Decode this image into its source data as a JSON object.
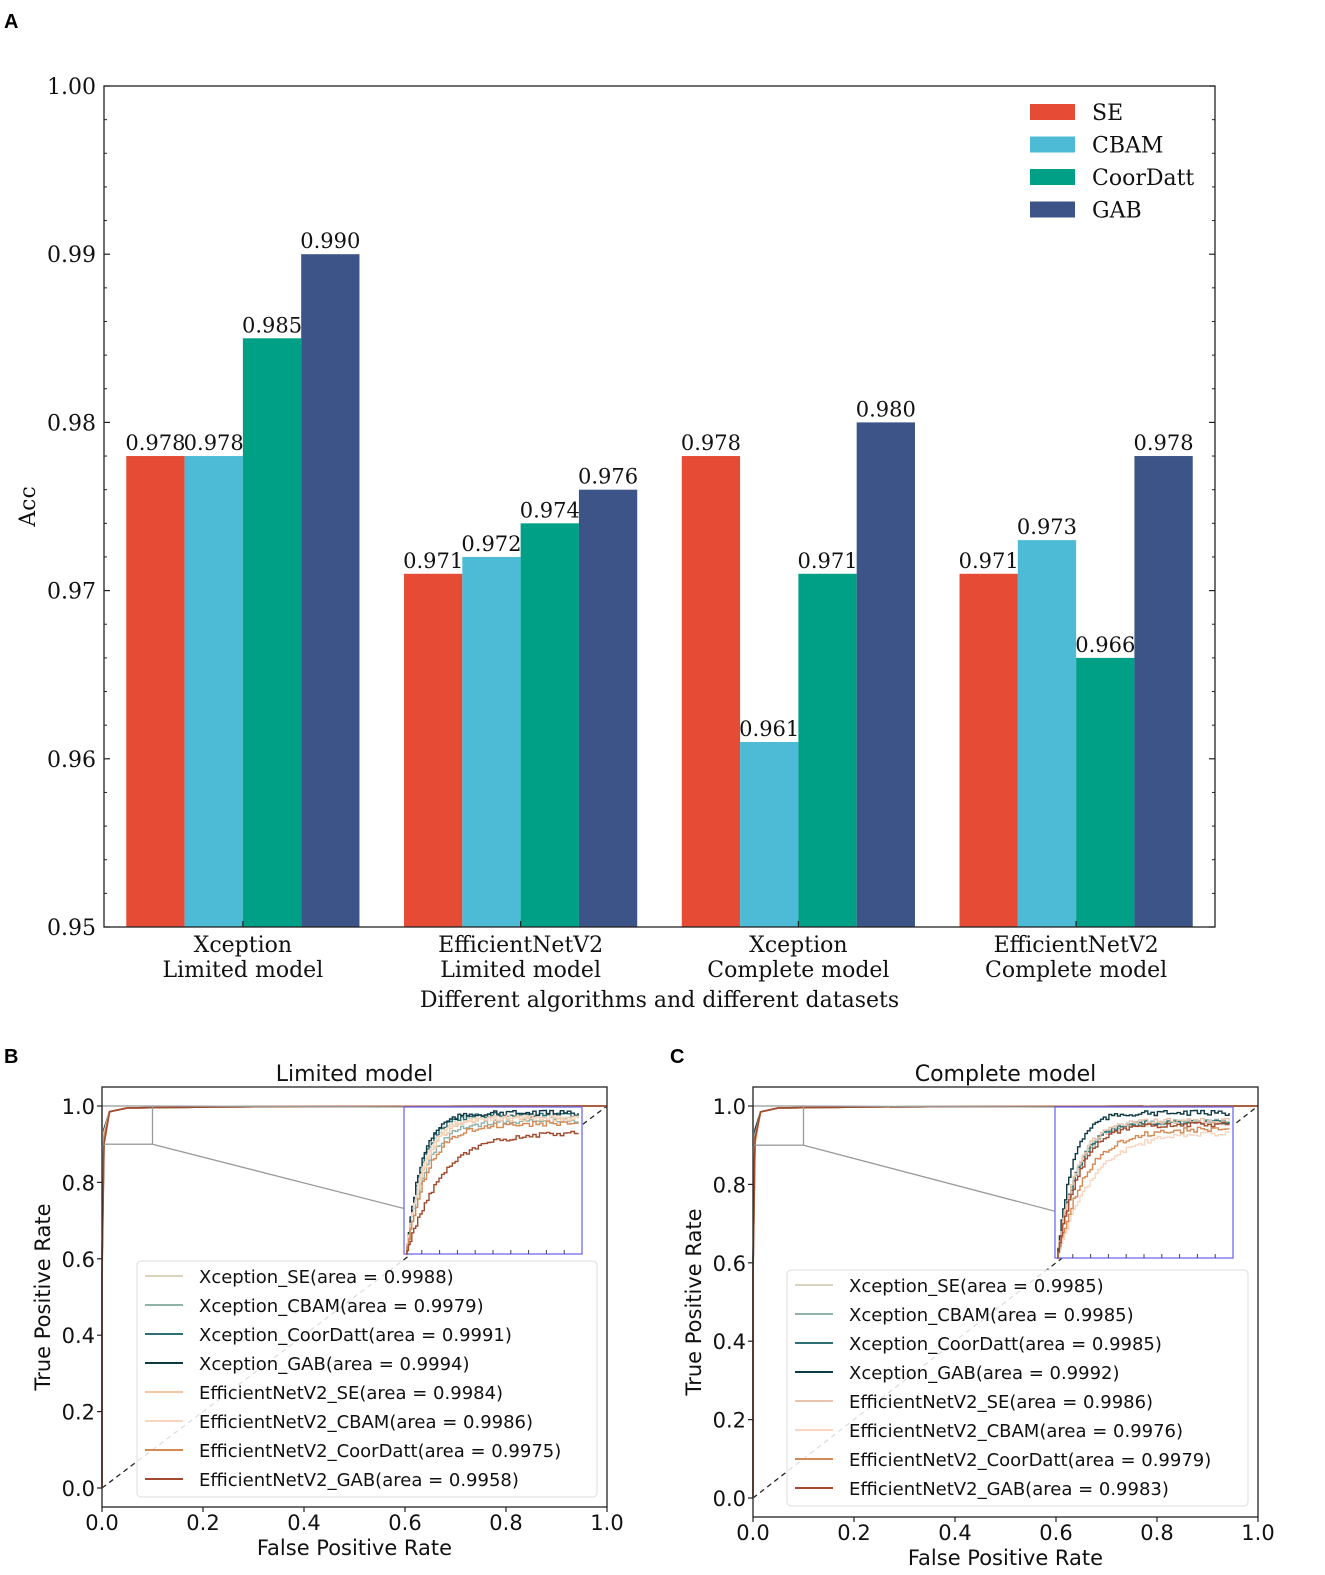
{
  "panel_labels": {
    "a": "A",
    "b": "B",
    "c": "C"
  },
  "chart_data": [
    {
      "type": "bar",
      "panel": "A",
      "title": "",
      "xlabel": "Different algorithms and different datasets",
      "ylabel": "Acc",
      "ylim": [
        0.95,
        1.0
      ],
      "yticks": [
        "0.95",
        "0.96",
        "0.97",
        "0.98",
        "0.99",
        "1.00"
      ],
      "categories": [
        [
          "Xception",
          "Limited model"
        ],
        [
          "EfficientNetV2",
          "Limited model"
        ],
        [
          "Xception",
          "Complete model"
        ],
        [
          "EfficientNetV2",
          "Complete model"
        ]
      ],
      "legend_position": "top-right",
      "series": [
        {
          "name": "SE",
          "color": "#E64B35",
          "values": [
            0.978,
            0.971,
            0.978,
            0.971
          ],
          "labels": [
            "0.978",
            "0.971",
            "0.978",
            "0.971"
          ]
        },
        {
          "name": "CBAM",
          "color": "#4DBBD5",
          "values": [
            0.978,
            0.972,
            0.961,
            0.973
          ],
          "labels": [
            "0.978",
            "0.972",
            "0.961",
            "0.973"
          ]
        },
        {
          "name": "CoorDatt",
          "color": "#00A087",
          "values": [
            0.985,
            0.974,
            0.971,
            0.966
          ],
          "labels": [
            "0.985",
            "0.974",
            "0.971",
            "0.966"
          ]
        },
        {
          "name": "GAB",
          "color": "#3C5488",
          "values": [
            0.99,
            0.976,
            0.98,
            0.978
          ],
          "labels": [
            "0.990",
            "0.976",
            "0.980",
            "0.978"
          ]
        }
      ]
    },
    {
      "type": "line",
      "panel": "B",
      "title": "Limited model",
      "xlabel": "False Positive Rate",
      "ylabel": "True Positive Rate",
      "xlim": [
        0.0,
        1.0
      ],
      "ylim": [
        0.0,
        1.0
      ],
      "xticks": [
        "0.0",
        "0.2",
        "0.4",
        "0.6",
        "0.8",
        "1.0"
      ],
      "yticks": [
        "0.0",
        "0.2",
        "0.4",
        "0.6",
        "0.8",
        "1.0"
      ],
      "legend_position": "lower-center",
      "series": [
        {
          "label": "Xception_SE(area = 0.9988)",
          "color": "#D9D4BE",
          "auc": 0.9988
        },
        {
          "label": "Xception_CBAM(area = 0.9979)",
          "color": "#8FB3A8",
          "auc": 0.9979
        },
        {
          "label": "Xception_CoorDatt(area = 0.9991)",
          "color": "#2E6F73",
          "auc": 0.9991
        },
        {
          "label": "Xception_GAB(area = 0.9994)",
          "color": "#0E3A46",
          "auc": 0.9994
        },
        {
          "label": "EfficientNetV2_SE(area = 0.9984)",
          "color": "#F2C7A4",
          "auc": 0.9984
        },
        {
          "label": "EfficientNetV2_CBAM(area = 0.9986)",
          "color": "#F9D5C0",
          "auc": 0.9986
        },
        {
          "label": "EfficientNetV2_CoorDatt(area = 0.9975)",
          "color": "#D38A55",
          "auc": 0.9975
        },
        {
          "label": "EfficientNetV2_GAB(area = 0.9958)",
          "color": "#A24A2E",
          "auc": 0.9958
        }
      ]
    },
    {
      "type": "line",
      "panel": "C",
      "title": "Complete model",
      "xlabel": "False Positive Rate",
      "ylabel": "True Positive Rate",
      "xlim": [
        0.0,
        1.0
      ],
      "ylim": [
        0.0,
        1.0
      ],
      "xticks": [
        "0.0",
        "0.2",
        "0.4",
        "0.6",
        "0.8",
        "1.0"
      ],
      "yticks": [
        "0.0",
        "0.2",
        "0.4",
        "0.6",
        "0.8",
        "1.0"
      ],
      "legend_position": "lower-center",
      "series": [
        {
          "label": "Xception_SE(area = 0.9985)",
          "color": "#D9D4BE",
          "auc": 0.9985
        },
        {
          "label": "Xception_CBAM(area = 0.9985)",
          "color": "#8FB3A8",
          "auc": 0.9985
        },
        {
          "label": "Xception_CoorDatt(area = 0.9985)",
          "color": "#2E6F73",
          "auc": 0.9985
        },
        {
          "label": "Xception_GAB(area = 0.9992)",
          "color": "#0E3A46",
          "auc": 0.9992
        },
        {
          "label": "EfficientNetV2_SE(area = 0.9986)",
          "color": "#E8C4AE",
          "auc": 0.9986
        },
        {
          "label": "EfficientNetV2_CBAM(area = 0.9976)",
          "color": "#F9D5C0",
          "auc": 0.9976
        },
        {
          "label": "EfficientNetV2_CoorDatt(area = 0.9979)",
          "color": "#D38A55",
          "auc": 0.9979
        },
        {
          "label": "EfficientNetV2_GAB(area = 0.9983)",
          "color": "#A24A2E",
          "auc": 0.9983
        }
      ]
    }
  ]
}
